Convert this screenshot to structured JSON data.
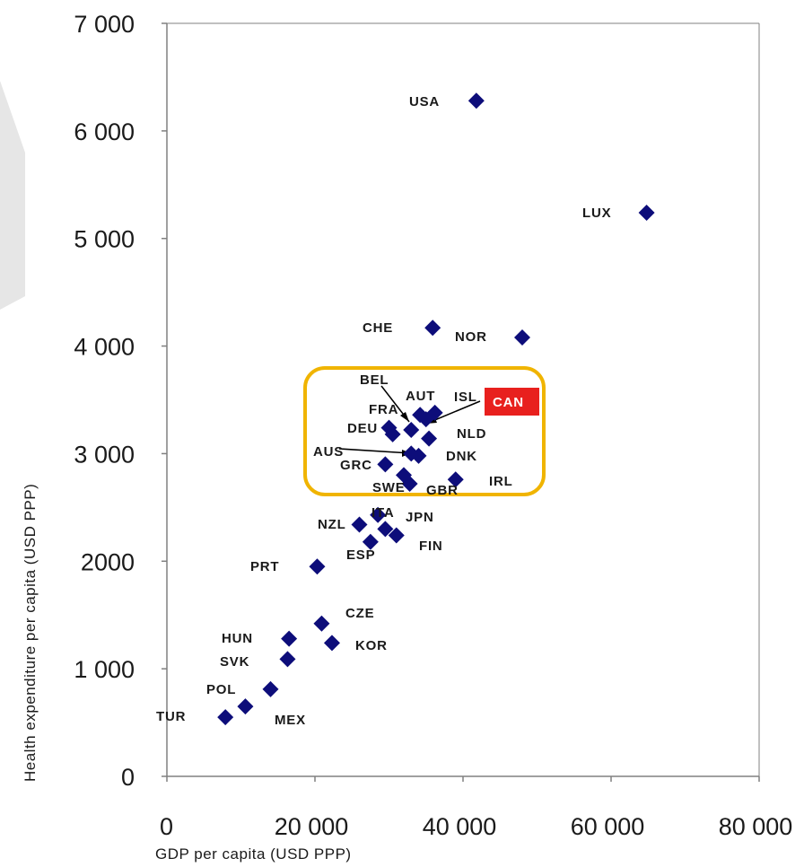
{
  "chart_data": {
    "type": "scatter",
    "xlabel": "GDP per capita (USD PPP)",
    "ylabel": "Health expenditure per capita (USD PPP)",
    "xlim": [
      0,
      80000
    ],
    "ylim": [
      0,
      7000
    ],
    "x_ticks": [
      {
        "value": 0,
        "label": "0"
      },
      {
        "value": 20000,
        "label": "20 000"
      },
      {
        "value": 40000,
        "label": "40 000"
      },
      {
        "value": 60000,
        "label": "60 000"
      },
      {
        "value": 80000,
        "label": "80 000"
      }
    ],
    "y_ticks": [
      {
        "value": 0,
        "label": "0"
      },
      {
        "value": 1000,
        "label": "1 000"
      },
      {
        "value": 2000,
        "label": "2000"
      },
      {
        "value": 3000,
        "label": "3 000"
      },
      {
        "value": 4000,
        "label": "4 000"
      },
      {
        "value": 5000,
        "label": "5 000"
      },
      {
        "value": 6000,
        "label": "6 000"
      },
      {
        "value": 7000,
        "label": "7 000"
      }
    ],
    "grid": false,
    "marker": "diamond",
    "marker_color": "#0d0d7a",
    "highlight_color": "#e8201e",
    "highlight_box_color": "#f0b400",
    "highlighted_country": "CAN",
    "points": [
      {
        "label": "USA",
        "x": 41800,
        "y": 6280
      },
      {
        "label": "LUX",
        "x": 64800,
        "y": 5240
      },
      {
        "label": "CHE",
        "x": 35900,
        "y": 4170
      },
      {
        "label": "NOR",
        "x": 48000,
        "y": 4080
      },
      {
        "label": "BEL",
        "x": 33000,
        "y": 3220
      },
      {
        "label": "AUT",
        "x": 34200,
        "y": 3360
      },
      {
        "label": "ISL",
        "x": 36200,
        "y": 3380
      },
      {
        "label": "CAN",
        "x": 35000,
        "y": 3320
      },
      {
        "label": "FRA",
        "x": 30000,
        "y": 3240
      },
      {
        "label": "DEU",
        "x": 30500,
        "y": 3180
      },
      {
        "label": "NLD",
        "x": 35400,
        "y": 3140
      },
      {
        "label": "AUS",
        "x": 33000,
        "y": 3000
      },
      {
        "label": "DNK",
        "x": 34000,
        "y": 2980
      },
      {
        "label": "GRC",
        "x": 29500,
        "y": 2900
      },
      {
        "label": "SWE",
        "x": 32000,
        "y": 2800
      },
      {
        "label": "GBR",
        "x": 32800,
        "y": 2720
      },
      {
        "label": "IRL",
        "x": 39000,
        "y": 2760
      },
      {
        "label": "ITA",
        "x": 28500,
        "y": 2430
      },
      {
        "label": "NZL",
        "x": 26000,
        "y": 2340
      },
      {
        "label": "JPN",
        "x": 29500,
        "y": 2300
      },
      {
        "label": "FIN",
        "x": 31000,
        "y": 2240
      },
      {
        "label": "ESP",
        "x": 27500,
        "y": 2180
      },
      {
        "label": "PRT",
        "x": 20300,
        "y": 1950
      },
      {
        "label": "CZE",
        "x": 20900,
        "y": 1420
      },
      {
        "label": "HUN",
        "x": 16500,
        "y": 1280
      },
      {
        "label": "KOR",
        "x": 22300,
        "y": 1240
      },
      {
        "label": "SVK",
        "x": 16300,
        "y": 1090
      },
      {
        "label": "POL",
        "x": 14000,
        "y": 810
      },
      {
        "label": "MEX",
        "x": 10600,
        "y": 650
      },
      {
        "label": "TUR",
        "x": 7900,
        "y": 550
      }
    ]
  }
}
